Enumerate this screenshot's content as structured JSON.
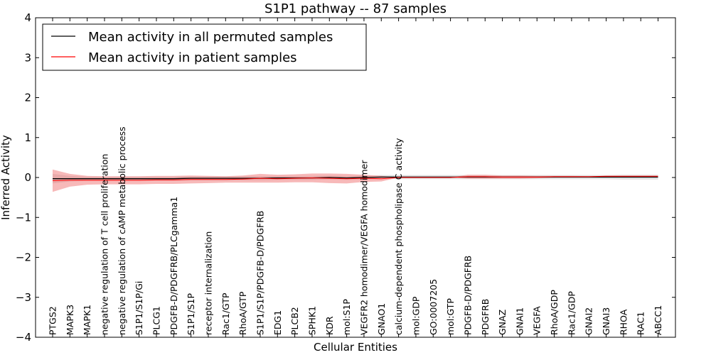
{
  "chart_data": {
    "type": "line",
    "title": "S1P1 pathway -- 87 samples",
    "xlabel": "Cellular Entities",
    "ylabel": "Inferred Activity",
    "ylim": [
      -4,
      4
    ],
    "yticks": [
      4,
      3,
      2,
      1,
      0,
      -1,
      -2,
      -3,
      -4
    ],
    "ytick_labels": [
      "4",
      "3",
      "2",
      "1",
      "0",
      "−1",
      "−2",
      "−3",
      "−4"
    ],
    "legend_position": "top-left",
    "categories": [
      "PTGS2",
      "MAPK3",
      "MAPK1",
      "negative regulation of T cell proliferation",
      "negative regulation of cAMP metabolic process",
      "S1P1/S1P/Gi",
      "PLCG1",
      "PDGFB-D/PDGFRB/PLCgamma1",
      "S1P1/S1P",
      "receptor internalization",
      "Rac1/GTP",
      "RhoA/GTP",
      "S1P1/S1P/PDGFB-D/PDGFRB",
      "EDG1",
      "PLCB2",
      "SPHK1",
      "KDR",
      "mol:S1P",
      "VEGFR2 homodimer/VEGFA homodimer",
      "GNAO1",
      "calcium-dependent phospholipase C activity",
      "mol:GDP",
      "GO:0007205",
      "mol:GTP",
      "PDGFB-D/PDGFRB",
      "PDGFRB",
      "GNAZ",
      "GNAI1",
      "VEGFA",
      "RhoA/GDP",
      "Rac1/GDP",
      "GNAI2",
      "GNAI3",
      "RHOA",
      "RAC1",
      "ABCC1"
    ],
    "series": [
      {
        "name": "Mean activity in all permuted samples",
        "color": "#000000",
        "band_color": "#aaaaaa",
        "values": [
          -0.03,
          -0.03,
          -0.03,
          -0.03,
          -0.03,
          -0.03,
          -0.03,
          -0.03,
          -0.02,
          -0.02,
          -0.02,
          -0.02,
          -0.02,
          -0.01,
          -0.01,
          -0.01,
          0.0,
          -0.01,
          0.0,
          0.01,
          0.01,
          0.01,
          0.01,
          0.01,
          0.01,
          0.01,
          0.01,
          0.01,
          0.01,
          0.01,
          0.01,
          0.01,
          0.01,
          0.01,
          0.01,
          0.01
        ],
        "band": [
          0.12,
          0.07,
          0.05,
          0.05,
          0.05,
          0.05,
          0.05,
          0.05,
          0.05,
          0.05,
          0.05,
          0.05,
          0.05,
          0.05,
          0.05,
          0.05,
          0.05,
          0.05,
          0.05,
          0.05,
          0.05,
          0.05,
          0.05,
          0.05,
          0.05,
          0.05,
          0.05,
          0.05,
          0.05,
          0.05,
          0.05,
          0.05,
          0.05,
          0.06,
          0.06,
          0.06
        ]
      },
      {
        "name": "Mean activity in patient samples",
        "color": "#ff0000",
        "band_color": "#f08080",
        "values": [
          -0.08,
          -0.07,
          -0.07,
          -0.07,
          -0.07,
          -0.07,
          -0.06,
          -0.06,
          -0.05,
          -0.05,
          -0.05,
          -0.04,
          -0.02,
          -0.03,
          -0.02,
          -0.01,
          -0.02,
          -0.03,
          -0.02,
          -0.03,
          0.0,
          0.0,
          0.0,
          0.0,
          0.02,
          0.02,
          0.01,
          0.01,
          0.01,
          0.02,
          0.02,
          0.02,
          0.03,
          0.03,
          0.03,
          0.03
        ],
        "band": [
          0.28,
          0.16,
          0.11,
          0.1,
          0.1,
          0.1,
          0.1,
          0.1,
          0.1,
          0.09,
          0.08,
          0.09,
          0.11,
          0.1,
          0.1,
          0.11,
          0.12,
          0.12,
          0.09,
          0.07,
          0.0,
          0.0,
          0.0,
          0.0,
          0.05,
          0.05,
          0.04,
          0.04,
          0.03,
          0.02,
          0.02,
          0.01,
          0.01,
          0.01,
          0.01,
          0.01
        ]
      }
    ]
  }
}
